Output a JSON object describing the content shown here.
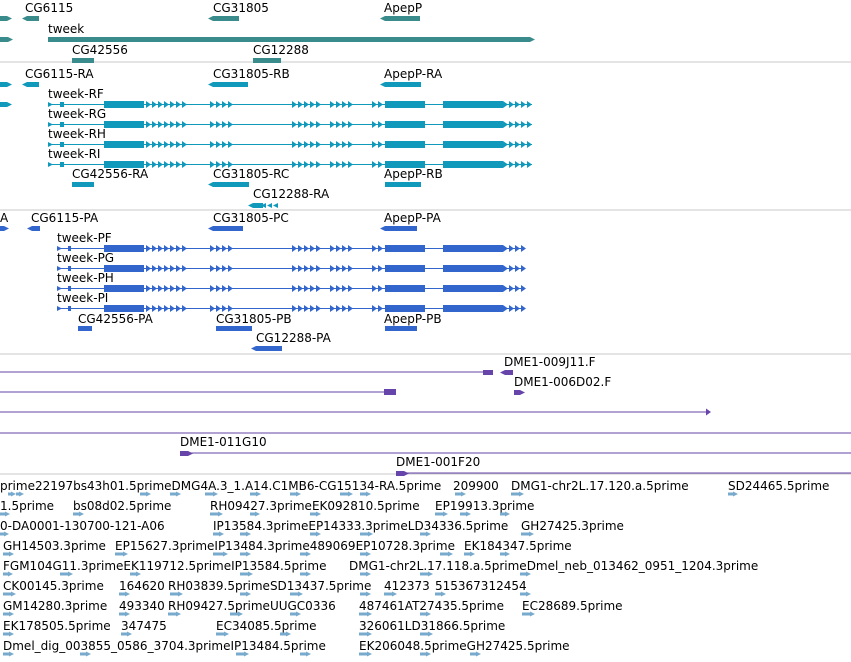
{
  "colors": {
    "gene": "#3a8c8c",
    "mrna": "#1199bb",
    "protein": "#3366cc",
    "clone": "#6644aa",
    "est": "#77aacc",
    "divider": "#c8c8c8"
  },
  "tracks": {
    "genes": {
      "labels": [
        {
          "text": "CG6115"
        },
        {
          "text": "CG31805"
        },
        {
          "text": "ApepP"
        },
        {
          "text": "tweek"
        },
        {
          "text": "CG42556"
        },
        {
          "text": "CG12288"
        }
      ]
    },
    "mrna": {
      "labels": [
        {
          "text": "CG6115-RA"
        },
        {
          "text": "CG31805-RB"
        },
        {
          "text": "ApepP-RA"
        },
        {
          "text": "tweek-RF"
        },
        {
          "text": "tweek-RG"
        },
        {
          "text": "tweek-RH"
        },
        {
          "text": "tweek-RI"
        },
        {
          "text": "CG42556-RA"
        },
        {
          "text": "CG31805-RC"
        },
        {
          "text": "ApepP-RB"
        },
        {
          "text": "CG12288-RA"
        }
      ]
    },
    "proteins": {
      "labels": [
        {
          "text": "A"
        },
        {
          "text": "CG6115-PA"
        },
        {
          "text": "CG31805-PC"
        },
        {
          "text": "ApepP-PA"
        },
        {
          "text": "tweek-PF"
        },
        {
          "text": "tweek-PG"
        },
        {
          "text": "tweek-PH"
        },
        {
          "text": "tweek-PI"
        },
        {
          "text": "CG42556-PA"
        },
        {
          "text": "CG31805-PB"
        },
        {
          "text": "ApepP-PB"
        },
        {
          "text": "CG12288-PA"
        }
      ]
    },
    "clones": {
      "labels": [
        {
          "text": "DME1-009J11.F"
        },
        {
          "text": "DME1-006D02.F"
        },
        {
          "text": "DME1-011G10"
        },
        {
          "text": "DME1-001F20"
        }
      ]
    },
    "ests": {
      "rows": [
        [
          "prime22197bs43h01.5primeDMG4A.3_1.A14.C1MB6-CG15134-RA.5prime",
          "209900",
          "DMG1-chr2L.17.120.a.5prime",
          "SD24465.5prime"
        ],
        [
          "1.5prime",
          "bs08d02.5prime",
          "RH09427.3primeEK092810.5prime",
          "EP19913.3prime"
        ],
        [
          "0-DA0001-130700-121-A06",
          "IP13584.3primeEP14333.3primeLD34336.5prime",
          "GH27425.3prime"
        ],
        [
          "GH14503.3prime",
          "EP15627.3primeIP13484.3prime489069EP10728.3prime",
          "EK184347.5prime"
        ],
        [
          "FGM104G11.3primeEK119712.5primeIP13584.5prime",
          "DMG1-chr2L.17.118.a.5primeDmel_neb_013462_0951_1204.3prime"
        ],
        [
          "CK00145.3prime",
          "164620",
          "RH03839.5primeSD13437.5prime",
          "412373",
          "515367312454"
        ],
        [
          "GM14280.3prime",
          "493340",
          "RH09427.5primeUUGC0336",
          "487461AT27435.5prime",
          "EC28689.5prime"
        ],
        [
          "EK178505.5prime",
          "347475",
          "EC34085.5prime",
          "326061LD31866.5prime"
        ],
        [
          "Dmel_dig_003855_0586_3704.3primeIP13484.5prime",
          "EK206048.5primeGH27425.5prime"
        ]
      ]
    }
  }
}
